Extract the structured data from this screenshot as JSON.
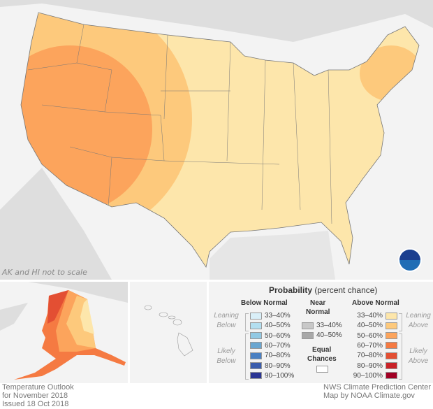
{
  "map": {
    "scale_note": "AK and HI not to scale",
    "logo": "NOAA"
  },
  "legend": {
    "title": "Probability",
    "title_suffix": "(percent chance)",
    "below": {
      "header": "Below Normal",
      "leaning": "Leaning Below",
      "likely": "Likely Below",
      "items": [
        {
          "label": "33–40%",
          "color": "#d9eff8"
        },
        {
          "label": "40–50%",
          "color": "#b3dff0"
        },
        {
          "label": "50–60%",
          "color": "#92c9e3"
        },
        {
          "label": "60–70%",
          "color": "#6aa6d0"
        },
        {
          "label": "70–80%",
          "color": "#4a80c2"
        },
        {
          "label": "80–90%",
          "color": "#3a5cac"
        },
        {
          "label": "90–100%",
          "color": "#2b3593"
        }
      ]
    },
    "near": {
      "header1": "Near",
      "header2": "Normal",
      "items": [
        {
          "label": "33–40%",
          "color": "#c8c8c8"
        },
        {
          "label": "40–50%",
          "color": "#a8a8a8"
        }
      ]
    },
    "equal": {
      "label1": "Equal",
      "label2": "Chances",
      "color": "#ffffff"
    },
    "above": {
      "header": "Above Normal",
      "leaning": "Leaning Above",
      "likely": "Likely Above",
      "items": [
        {
          "label": "33–40%",
          "color": "#fde6ab"
        },
        {
          "label": "40–50%",
          "color": "#fdc97c"
        },
        {
          "label": "50–60%",
          "color": "#fca45c"
        },
        {
          "label": "60–70%",
          "color": "#f57a42"
        },
        {
          "label": "70–80%",
          "color": "#e34f33"
        },
        {
          "label": "80–90%",
          "color": "#c92228"
        },
        {
          "label": "90–100%",
          "color": "#a10024"
        }
      ]
    }
  },
  "footer": {
    "left": [
      "Temperature Outlook",
      "for November 2018",
      "Issued 18 Oct 2018"
    ],
    "right": [
      "NWS Climate Prediction Center",
      "Map by NOAA Climate.gov"
    ]
  }
}
